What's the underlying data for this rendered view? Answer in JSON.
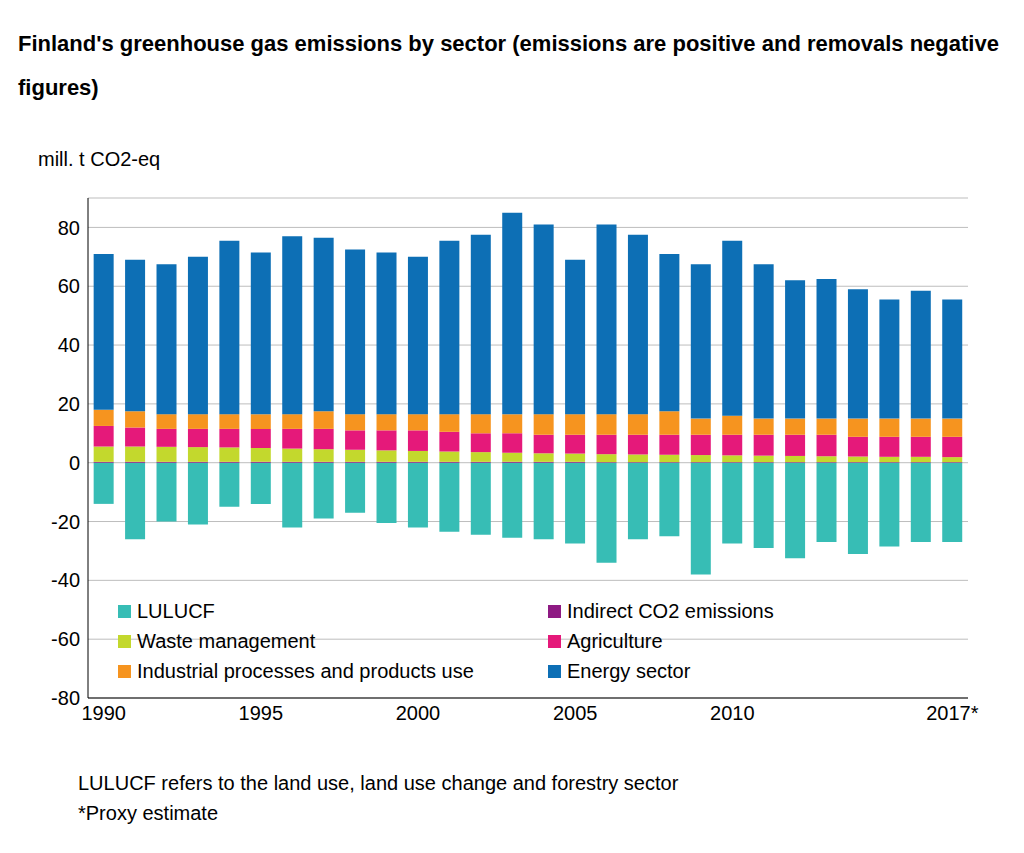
{
  "chart_data": {
    "type": "bar",
    "title": "Finland's greenhouse gas emissions by sector (emissions are positive and removals negative figures)",
    "y_label": "mill. t CO2-eq",
    "annotations": [
      "LULUCF refers to the land use, land use change and forestry sector",
      "*Proxy estimate"
    ],
    "categories": [
      "1990",
      null,
      null,
      null,
      null,
      "1995",
      null,
      null,
      null,
      null,
      "2000",
      null,
      null,
      null,
      null,
      "2005",
      null,
      null,
      null,
      null,
      "2010",
      null,
      null,
      null,
      null,
      null,
      null,
      "2017*"
    ],
    "stacked": true,
    "grid": true,
    "legend": "lower left",
    "ylim": [
      -80,
      90
    ],
    "yticks": [
      -80,
      -60,
      -40,
      -20,
      0,
      20,
      40,
      60,
      80
    ],
    "series": [
      {
        "name": "LULUCF",
        "color": "#37bdb5",
        "values": [
          -14,
          -26,
          -20,
          -21,
          -15,
          -14,
          -22,
          -19,
          -17,
          -20.5,
          -22,
          -23.5,
          -24.5,
          -25.5,
          -26,
          -27.5,
          -34,
          -26,
          -25,
          -38,
          -27.5,
          -29,
          -32.5,
          -27,
          -31,
          -28.5,
          -27,
          -27
        ]
      },
      {
        "name": "Indirect CO2 emissions",
        "color": "#8e1a83",
        "values": [
          0.3,
          0.3,
          0.3,
          0.3,
          0.3,
          0.3,
          0.3,
          0.3,
          0.3,
          0.3,
          0.3,
          0.3,
          0.3,
          0.3,
          0.3,
          0.3,
          0.2,
          0.2,
          0.2,
          0.2,
          0.2,
          0.2,
          0.2,
          0.2,
          0.2,
          0.2,
          0.2,
          0.2
        ]
      },
      {
        "name": "Waste management",
        "color": "#c3d82d",
        "values": [
          5.2,
          5.2,
          5.1,
          5.0,
          4.9,
          4.7,
          4.5,
          4.3,
          4.1,
          3.9,
          3.7,
          3.5,
          3.3,
          3.1,
          2.9,
          2.8,
          2.7,
          2.6,
          2.5,
          2.4,
          2.3,
          2.2,
          2.1,
          2.0,
          1.9,
          1.8,
          1.8,
          1.7
        ]
      },
      {
        "name": "Agriculture",
        "color": "#e5197a",
        "values": [
          7.0,
          6.5,
          6.1,
          6.2,
          6.3,
          6.5,
          6.7,
          6.9,
          6.6,
          6.8,
          7.0,
          6.7,
          6.4,
          6.6,
          6.3,
          6.4,
          6.6,
          6.7,
          6.8,
          6.9,
          7.0,
          7.1,
          7.2,
          7.3,
          6.7,
          6.8,
          6.8,
          6.9
        ]
      },
      {
        "name": "Industrial processes and products use",
        "color": "#f6941f",
        "values": [
          5.5,
          5.5,
          5,
          5,
          5,
          5,
          5,
          6,
          5.5,
          5.5,
          5.5,
          6,
          6.5,
          6.5,
          7,
          7,
          7,
          7,
          8,
          5.5,
          6.5,
          5.5,
          5.5,
          5.5,
          6.2,
          6.2,
          6.2,
          6.2
        ]
      },
      {
        "name": "Energy sector",
        "color": "#0d6fb5",
        "values": [
          53,
          51.5,
          51,
          53.5,
          59,
          55,
          60.5,
          59,
          56,
          55,
          53.5,
          59,
          61,
          68.5,
          64.5,
          52.5,
          64.5,
          61,
          53.5,
          52.5,
          59.5,
          52.5,
          47,
          47.5,
          44,
          40.5,
          43.5,
          40.5
        ]
      }
    ]
  }
}
